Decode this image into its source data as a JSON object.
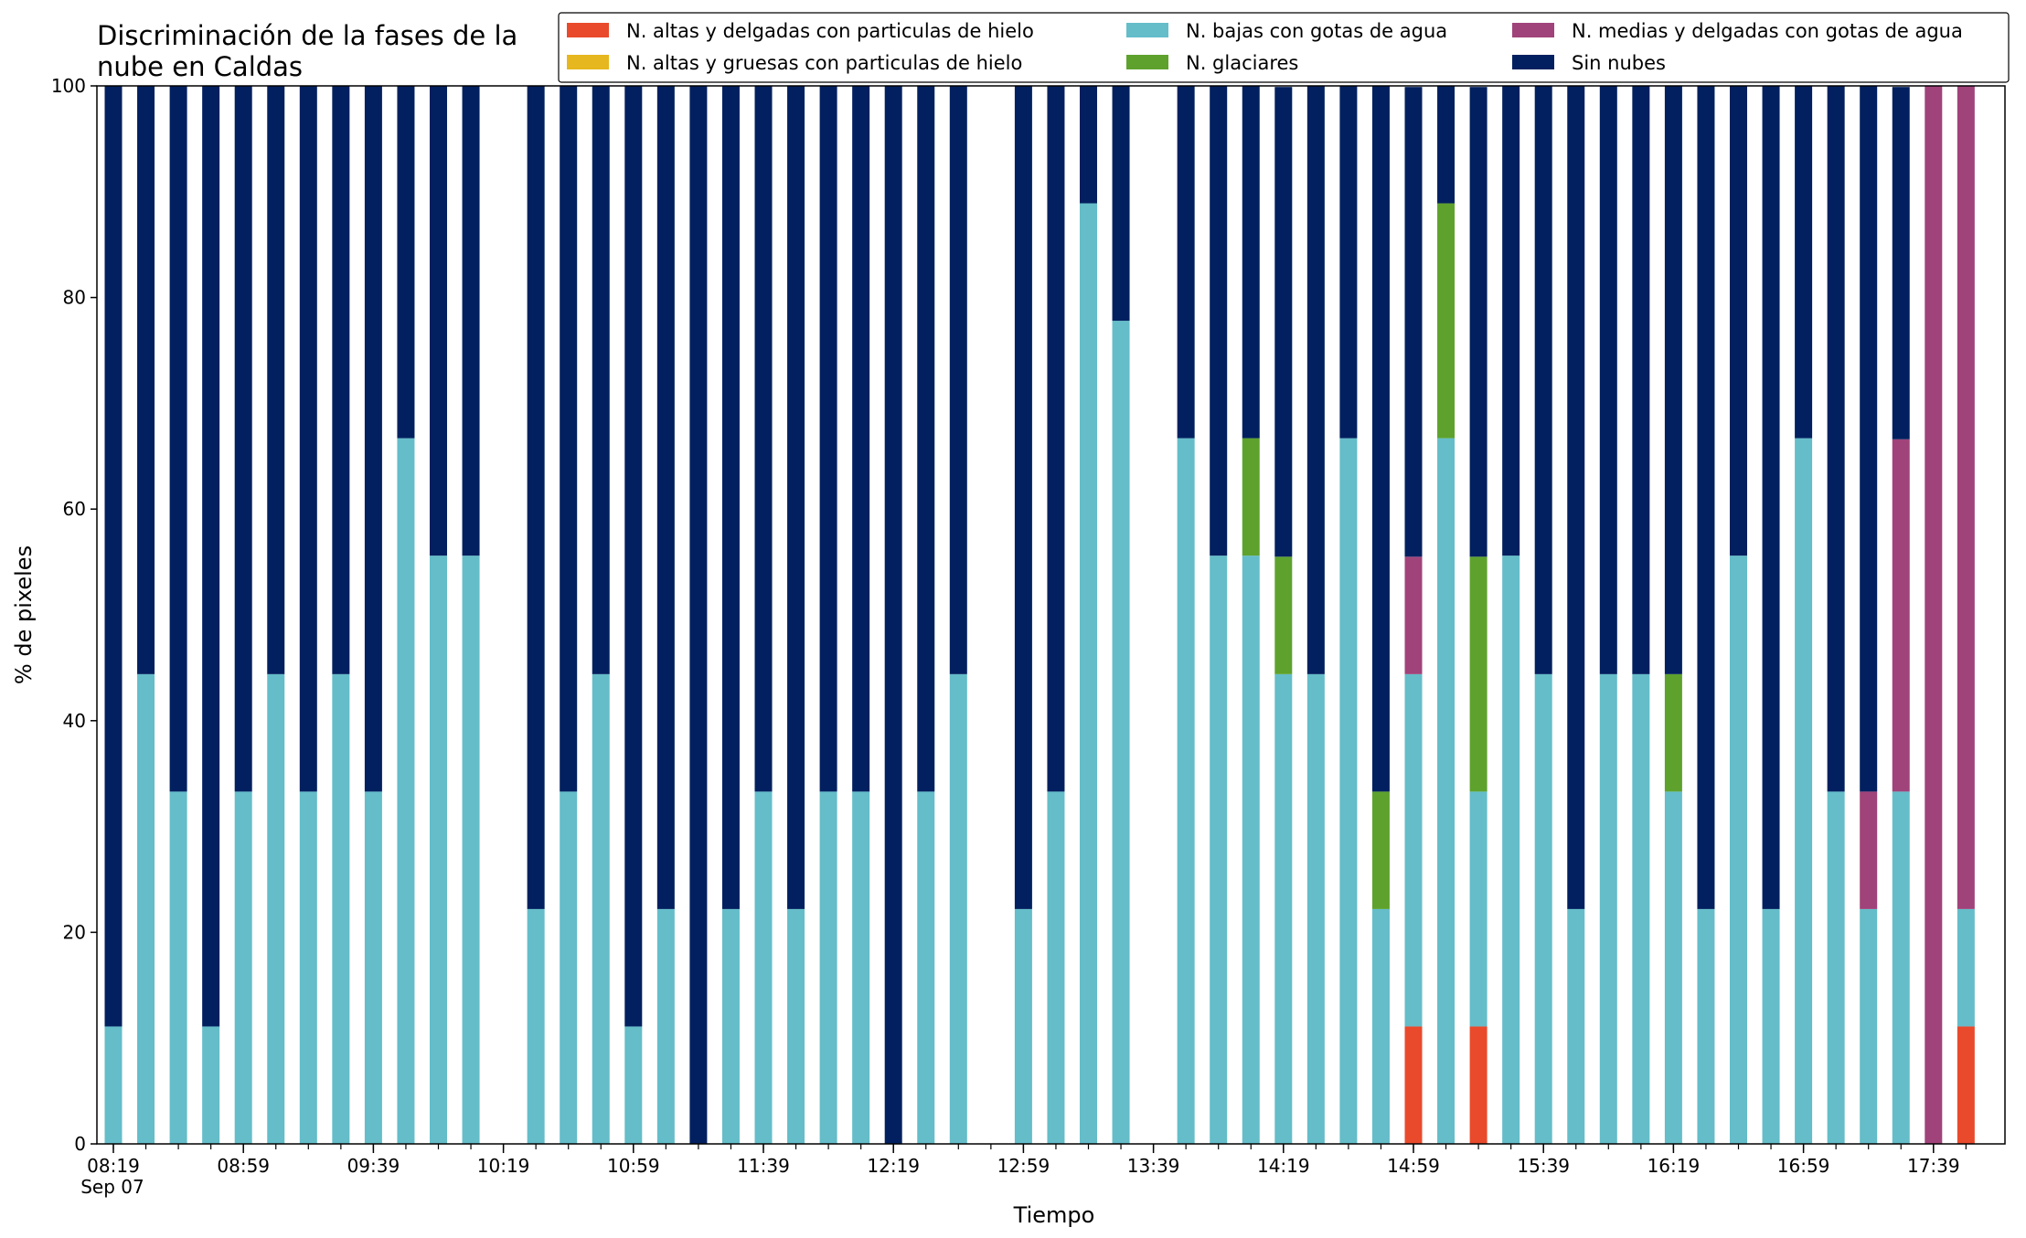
{
  "chart_data": {
    "type": "bar",
    "stacked": true,
    "title": "Discriminación de la fases de la\nnube en Caldas",
    "xlabel": "Tiempo",
    "ylabel": "% de pixeles",
    "ylim": [
      0,
      100
    ],
    "yticks": [
      0,
      20,
      40,
      60,
      80,
      100
    ],
    "x_tick_labels": [
      "08:19",
      "08:59",
      "09:39",
      "10:19",
      "10:59",
      "11:39",
      "12:19",
      "12:59",
      "13:39",
      "14:19",
      "14:59",
      "15:39",
      "16:19",
      "16:59",
      "17:39"
    ],
    "x_date_label": "Sep 07",
    "legend_position": "top-right",
    "times": [
      "08:19",
      "08:29",
      "08:39",
      "08:49",
      "08:59",
      "09:09",
      "09:19",
      "09:29",
      "09:39",
      "09:49",
      "09:59",
      "10:09",
      "10:19",
      "10:29",
      "10:39",
      "10:49",
      "10:59",
      "11:09",
      "11:19",
      "11:29",
      "11:39",
      "11:49",
      "11:59",
      "12:09",
      "12:19",
      "12:29",
      "12:39",
      "12:49",
      "12:59",
      "13:09",
      "13:19",
      "13:29",
      "13:39",
      "13:49",
      "13:59",
      "14:09",
      "14:19",
      "14:29",
      "14:39",
      "14:49",
      "14:59",
      "15:09",
      "15:19",
      "15:29",
      "15:39",
      "15:49",
      "15:59",
      "16:09",
      "16:19",
      "16:29",
      "16:39",
      "16:49",
      "16:59",
      "17:09",
      "17:19",
      "17:29",
      "17:39",
      "17:49"
    ],
    "series": [
      {
        "name": "N. altas y delgadas con particulas de hielo",
        "color": "#e94a2c",
        "values": [
          0,
          0,
          0,
          0,
          0,
          0,
          0,
          0,
          0,
          0,
          0,
          0,
          null,
          0,
          0,
          0,
          0,
          0,
          0,
          0,
          0,
          0,
          0,
          0,
          0,
          0,
          0,
          null,
          0,
          0,
          0,
          0,
          null,
          0,
          0,
          0,
          0,
          0,
          0,
          0,
          11.1,
          0,
          11.1,
          0,
          0,
          0,
          0,
          0,
          0,
          0,
          0,
          0,
          0,
          0,
          0,
          0,
          0,
          11.1
        ]
      },
      {
        "name": "N. altas y gruesas con particulas de hielo",
        "color": "#e6b71e",
        "values": [
          0,
          0,
          0,
          0,
          0,
          0,
          0,
          0,
          0,
          0,
          0,
          0,
          null,
          0,
          0,
          0,
          0,
          0,
          0,
          0,
          0,
          0,
          0,
          0,
          0,
          0,
          0,
          null,
          0,
          0,
          0,
          0,
          null,
          0,
          0,
          0,
          0,
          0,
          0,
          0,
          0,
          0,
          0,
          0,
          0,
          0,
          0,
          0,
          0,
          0,
          0,
          0,
          0,
          0,
          0,
          0,
          0,
          0
        ]
      },
      {
        "name": "N. bajas con gotas de agua",
        "color": "#64bdc9",
        "values": [
          11.1,
          44.4,
          33.3,
          11.1,
          33.3,
          44.4,
          33.3,
          44.4,
          33.3,
          66.7,
          55.6,
          55.6,
          null,
          22.2,
          33.3,
          44.4,
          11.1,
          22.2,
          0,
          22.2,
          33.3,
          22.2,
          33.3,
          33.3,
          0,
          33.3,
          44.4,
          null,
          22.2,
          33.3,
          88.9,
          77.8,
          null,
          66.7,
          55.6,
          55.6,
          44.4,
          44.4,
          66.7,
          22.2,
          33.3,
          66.7,
          22.2,
          55.6,
          44.4,
          22.2,
          44.4,
          44.4,
          33.3,
          22.2,
          55.6,
          22.2,
          66.7,
          33.3,
          22.2,
          33.3,
          0,
          11.1
        ]
      },
      {
        "name": "N. glaciares",
        "color": "#5ea22d",
        "values": [
          0,
          0,
          0,
          0,
          0,
          0,
          0,
          0,
          0,
          0,
          0,
          0,
          null,
          0,
          0,
          0,
          0,
          0,
          0,
          0,
          0,
          0,
          0,
          0,
          0,
          0,
          0,
          null,
          0,
          0,
          0,
          0,
          null,
          0,
          0,
          11.1,
          11.1,
          0,
          0,
          11.1,
          0,
          22.2,
          22.2,
          0,
          0,
          0,
          0,
          0,
          11.1,
          0,
          0,
          0,
          0,
          0,
          0,
          0,
          0,
          0
        ]
      },
      {
        "name": "N. medias y delgadas con gotas de agua",
        "color": "#a0437a",
        "values": [
          0,
          0,
          0,
          0,
          0,
          0,
          0,
          0,
          0,
          0,
          0,
          0,
          null,
          0,
          0,
          0,
          0,
          0,
          0,
          0,
          0,
          0,
          0,
          0,
          0,
          0,
          0,
          null,
          0,
          0,
          0,
          0,
          null,
          0,
          0,
          0,
          0,
          0,
          0,
          0,
          11.1,
          0,
          0,
          0,
          0,
          0,
          0,
          0,
          0,
          0,
          0,
          0,
          0,
          0,
          11.1,
          33.3,
          100,
          77.8
        ]
      },
      {
        "name": "Sin nubes",
        "color": "#02205f",
        "values": [
          88.9,
          55.6,
          66.7,
          88.9,
          66.7,
          55.6,
          66.7,
          55.6,
          66.7,
          33.3,
          44.4,
          44.4,
          null,
          77.8,
          66.7,
          55.6,
          88.9,
          77.8,
          100,
          77.8,
          66.7,
          77.8,
          66.7,
          66.7,
          100,
          66.7,
          55.6,
          null,
          77.8,
          66.7,
          11.1,
          22.2,
          null,
          33.3,
          44.4,
          33.3,
          44.4,
          55.6,
          33.3,
          66.7,
          44.4,
          11.1,
          44.4,
          44.4,
          55.6,
          77.8,
          55.6,
          55.6,
          55.6,
          77.8,
          44.4,
          77.8,
          33.3,
          66.7,
          66.7,
          33.3,
          0,
          0
        ]
      }
    ]
  }
}
